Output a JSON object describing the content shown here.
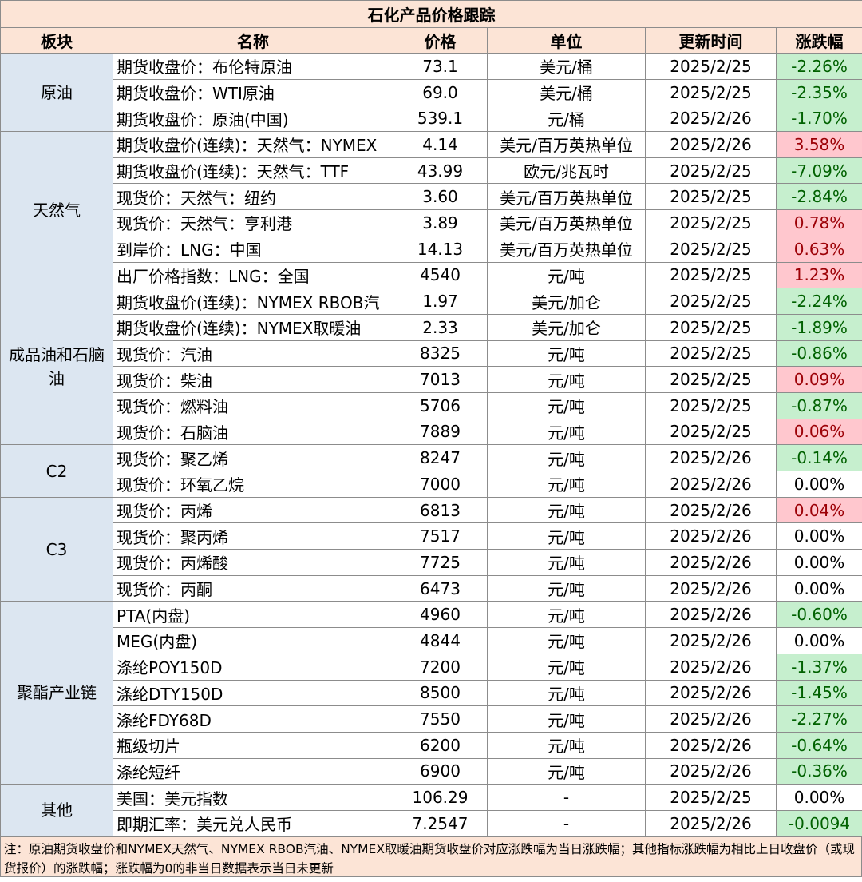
{
  "table": {
    "title": "石化产品价格跟踪",
    "headers": [
      "板块",
      "名称",
      "价格",
      "单位",
      "更新时间",
      "涨跌幅"
    ],
    "groups": [
      {
        "label": "原油",
        "rows": [
          [
            "期货收盘价：布伦特原油",
            "73.1",
            "美元/桶",
            "2025/2/25",
            "-2.26%"
          ],
          [
            "期货收盘价：WTI原油",
            "69.0",
            "美元/桶",
            "2025/2/25",
            "-2.35%"
          ],
          [
            "期货收盘价：原油(中国)",
            "539.1",
            "元/桶",
            "2025/2/26",
            "-1.70%"
          ]
        ]
      },
      {
        "label": "天然气",
        "rows": [
          [
            "期货收盘价(连续)：天然气：NYMEX",
            "4.14",
            "美元/百万英热单位",
            "2025/2/26",
            "3.58%"
          ],
          [
            "期货收盘价(连续)：天然气：TTF",
            "43.99",
            "欧元/兆瓦时",
            "2025/2/25",
            "-7.09%"
          ],
          [
            "现货价：天然气：纽约",
            "3.60",
            "美元/百万英热单位",
            "2025/2/25",
            "-2.84%"
          ],
          [
            "现货价：天然气：亨利港",
            "3.89",
            "美元/百万英热单位",
            "2025/2/25",
            "0.78%"
          ],
          [
            "到岸价：LNG：中国",
            "14.13",
            "美元/百万英热单位",
            "2025/2/25",
            "0.63%"
          ],
          [
            "出厂价格指数：LNG：全国",
            "4540",
            "元/吨",
            "2025/2/25",
            "1.23%"
          ]
        ]
      },
      {
        "label": "成品油和石脑油",
        "rows": [
          [
            "期货收盘价(连续)：NYMEX RBOB汽",
            "1.97",
            "美元/加仑",
            "2025/2/25",
            "-2.24%"
          ],
          [
            "期货收盘价(连续)：NYMEX取暖油",
            "2.33",
            "美元/加仑",
            "2025/2/25",
            "-1.89%"
          ],
          [
            "现货价：汽油",
            "8325",
            "元/吨",
            "2025/2/25",
            "-0.86%"
          ],
          [
            "现货价：柴油",
            "7013",
            "元/吨",
            "2025/2/25",
            "0.09%"
          ],
          [
            "现货价：燃料油",
            "5706",
            "元/吨",
            "2025/2/25",
            "-0.87%"
          ],
          [
            "现货价：石脑油",
            "7889",
            "元/吨",
            "2025/2/25",
            "0.06%"
          ]
        ]
      },
      {
        "label": "C2",
        "rows": [
          [
            "现货价：聚乙烯",
            "8247",
            "元/吨",
            "2025/2/26",
            "-0.14%"
          ],
          [
            "现货价：环氧乙烷",
            "7000",
            "元/吨",
            "2025/2/26",
            "0.00%"
          ]
        ]
      },
      {
        "label": "C3",
        "rows": [
          [
            "现货价：丙烯",
            "6813",
            "元/吨",
            "2025/2/26",
            "0.04%"
          ],
          [
            "现货价：聚丙烯",
            "7517",
            "元/吨",
            "2025/2/26",
            "0.00%"
          ],
          [
            "现货价：丙烯酸",
            "7725",
            "元/吨",
            "2025/2/26",
            "0.00%"
          ],
          [
            "现货价：丙酮",
            "6473",
            "元/吨",
            "2025/2/26",
            "0.00%"
          ]
        ]
      },
      {
        "label": "聚酯产业链",
        "rows": [
          [
            "PTA(内盘)",
            "4960",
            "元/吨",
            "2025/2/26",
            "-0.60%"
          ],
          [
            "MEG(内盘)",
            "4844",
            "元/吨",
            "2025/2/26",
            "0.00%"
          ],
          [
            "涤纶POY150D",
            "7200",
            "元/吨",
            "2025/2/26",
            "-1.37%"
          ],
          [
            "涤纶DTY150D",
            "8500",
            "元/吨",
            "2025/2/26",
            "-1.45%"
          ],
          [
            "涤纶FDY68D",
            "7550",
            "元/吨",
            "2025/2/26",
            "-2.27%"
          ],
          [
            "瓶级切片",
            "6200",
            "元/吨",
            "2025/2/26",
            "-0.64%"
          ],
          [
            "涤纶短纤",
            "6900",
            "元/吨",
            "2025/2/26",
            "-0.36%"
          ]
        ]
      },
      {
        "label": "其他",
        "rows": [
          [
            "美国：美元指数",
            "106.29",
            "-",
            "2025/2/25",
            "0.00%"
          ],
          [
            "即期汇率：美元兑人民币",
            "7.2547",
            "-",
            "2025/2/26",
            "-0.0094"
          ]
        ]
      }
    ],
    "note": "注：原油期货收盘价和NYMEX天然气、NYMEX RBOB汽油、NYMEX取暖油期货收盘价对应涨跌幅为当日涨跌幅；其他指标涨跌幅为相比上日收盘价（或现货报价）的涨跌幅；涨跌幅为0的非当日数据表示当日未更新"
  }
}
